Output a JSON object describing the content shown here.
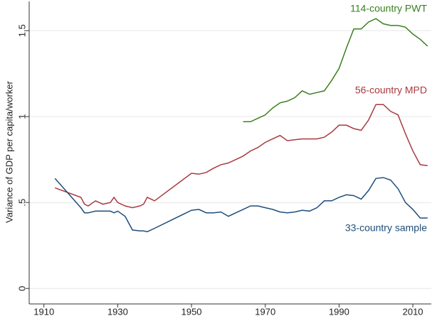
{
  "chart_data": {
    "type": "line",
    "ylabel": "Variance of GDP per capita/worker",
    "x": [
      1913,
      1920,
      1921,
      1922,
      1924,
      1926,
      1928,
      1929,
      1930,
      1932,
      1934,
      1936,
      1937,
      1938,
      1940,
      1950,
      1952,
      1954,
      1956,
      1958,
      1960,
      1962,
      1964,
      1966,
      1968,
      1970,
      1972,
      1974,
      1976,
      1978,
      1980,
      1982,
      1984,
      1986,
      1988,
      1990,
      1992,
      1994,
      1996,
      1998,
      2000,
      2002,
      2004,
      2006,
      2008,
      2010,
      2012,
      2014
    ],
    "series": [
      {
        "name": "114-country PWT",
        "color": "#3b7f1f",
        "values": [
          null,
          null,
          null,
          null,
          null,
          null,
          null,
          null,
          null,
          null,
          null,
          null,
          null,
          null,
          null,
          null,
          null,
          null,
          null,
          null,
          null,
          null,
          0.97,
          0.97,
          0.99,
          1.01,
          1.05,
          1.08,
          1.09,
          1.11,
          1.15,
          1.13,
          1.14,
          1.15,
          1.21,
          1.28,
          1.4,
          1.51,
          1.51,
          1.55,
          1.57,
          1.54,
          1.53,
          1.53,
          1.52,
          1.48,
          1.45,
          1.41
        ]
      },
      {
        "name": "56-country MPD",
        "color": "#a83a40",
        "values": [
          0.585,
          0.53,
          0.49,
          0.48,
          0.51,
          0.49,
          0.5,
          0.53,
          0.5,
          0.48,
          0.47,
          0.48,
          0.49,
          0.53,
          0.51,
          0.67,
          0.665,
          0.675,
          0.7,
          0.72,
          0.73,
          0.75,
          0.77,
          0.8,
          0.82,
          0.85,
          0.87,
          0.89,
          0.86,
          0.865,
          0.87,
          0.87,
          0.87,
          0.88,
          0.91,
          0.95,
          0.95,
          0.93,
          0.92,
          0.98,
          1.07,
          1.07,
          1.03,
          1.01,
          0.9,
          0.8,
          0.72,
          0.715
        ]
      },
      {
        "name": "33-country sample",
        "color": "#1f4d7a",
        "values": [
          0.64,
          0.47,
          0.44,
          0.44,
          0.45,
          0.45,
          0.45,
          0.44,
          0.45,
          0.42,
          0.34,
          0.335,
          0.335,
          0.33,
          0.35,
          0.455,
          0.46,
          0.44,
          0.44,
          0.445,
          0.42,
          0.44,
          0.46,
          0.48,
          0.48,
          0.47,
          0.46,
          0.445,
          0.44,
          0.445,
          0.455,
          0.45,
          0.47,
          0.51,
          0.51,
          0.53,
          0.545,
          0.54,
          0.52,
          0.57,
          0.64,
          0.645,
          0.63,
          0.58,
          0.5,
          0.46,
          0.41,
          0.41
        ]
      }
    ],
    "xlim": [
      1906,
      2015
    ],
    "xticks": [
      1910,
      1930,
      1950,
      1970,
      1990,
      2010
    ],
    "ylim": [
      -0.09,
      1.67
    ],
    "yticks": [
      0,
      {
        "value": 0.5,
        "label": ".5"
      },
      1,
      1.5
    ],
    "grid": true
  }
}
